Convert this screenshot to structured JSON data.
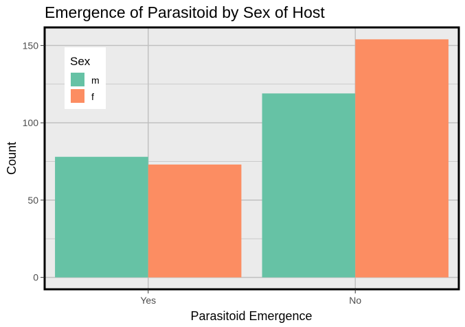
{
  "chart_data": {
    "type": "bar",
    "title": "Emergence of Parasitoid by Sex of Host",
    "xlabel": "Parasitoid Emergence",
    "ylabel": "Count",
    "categories": [
      "Yes",
      "No"
    ],
    "series": [
      {
        "name": "m",
        "values": [
          78,
          119
        ]
      },
      {
        "name": "f",
        "values": [
          73,
          154
        ]
      }
    ],
    "ylim": [
      -7.7,
      161.7
    ],
    "yticks": [
      0,
      50,
      100,
      150
    ],
    "grid": true,
    "legend": {
      "title": "Sex",
      "placement": "top-left"
    }
  },
  "colors": {
    "series_m": "#66c2a5",
    "series_f": "#fc8d62",
    "panel_background": "#ebebeb",
    "grid_line": "#c0c0c0",
    "panel_border": "#000000"
  }
}
